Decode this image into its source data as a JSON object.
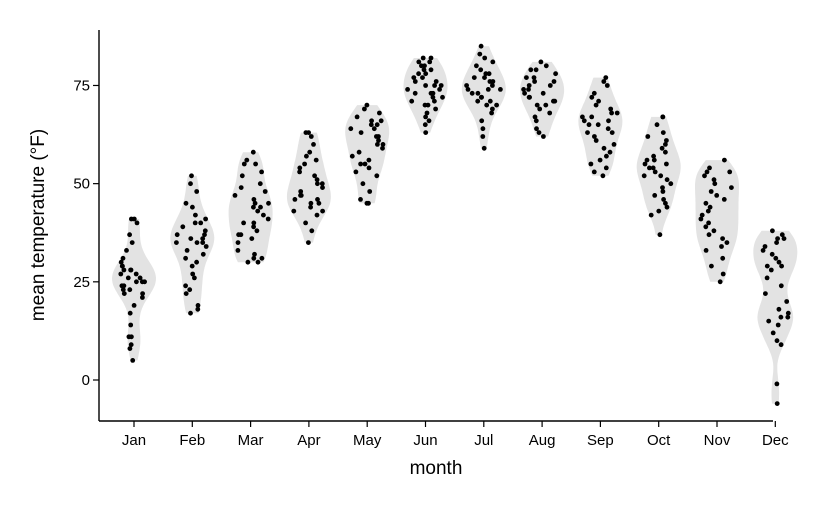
{
  "chart_data": {
    "type": "violin",
    "xlabel": "month",
    "ylabel": "mean temperature (°F)",
    "categories": [
      "Jan",
      "Feb",
      "Mar",
      "Apr",
      "May",
      "Jun",
      "Jul",
      "Aug",
      "Sep",
      "Oct",
      "Nov",
      "Dec"
    ],
    "y_ticks": [
      0,
      25,
      50,
      75
    ],
    "ylim": [
      -10,
      89
    ],
    "grid": false,
    "legend": "none",
    "colors": {
      "violin_fill": "#e3e3e3",
      "point": "#000000"
    },
    "series": [
      {
        "category": "Jan",
        "values": [
          5,
          8,
          9,
          11,
          11,
          14,
          17,
          19,
          21,
          22,
          22,
          23,
          23,
          24,
          24,
          25,
          25,
          25,
          26,
          26,
          27,
          27,
          28,
          28,
          28,
          29,
          29,
          30,
          31,
          33,
          35,
          37,
          40,
          41,
          41
        ]
      },
      {
        "category": "Feb",
        "values": [
          17,
          18,
          19,
          22,
          23,
          24,
          26,
          27,
          29,
          30,
          31,
          32,
          33,
          34,
          35,
          35,
          35,
          36,
          36,
          37,
          37,
          38,
          39,
          40,
          40,
          41,
          42,
          44,
          45,
          48,
          50,
          52
        ]
      },
      {
        "category": "Mar",
        "values": [
          30,
          30,
          31,
          31,
          32,
          33,
          35,
          36,
          37,
          37,
          38,
          39,
          40,
          40,
          41,
          42,
          43,
          44,
          44,
          45,
          45,
          46,
          47,
          48,
          49,
          50,
          52,
          53,
          55,
          55,
          56,
          58
        ]
      },
      {
        "category": "Apr",
        "values": [
          35,
          38,
          40,
          42,
          43,
          43,
          44,
          45,
          45,
          46,
          46,
          47,
          47,
          48,
          49,
          50,
          50,
          51,
          52,
          53,
          54,
          55,
          56,
          57,
          58,
          60,
          62,
          63,
          63
        ]
      },
      {
        "category": "May",
        "values": [
          45,
          45,
          46,
          48,
          50,
          52,
          53,
          54,
          55,
          55,
          56,
          57,
          58,
          59,
          60,
          60,
          61,
          62,
          62,
          63,
          64,
          64,
          65,
          65,
          66,
          66,
          67,
          68,
          69,
          70
        ]
      },
      {
        "category": "Jun",
        "values": [
          63,
          65,
          66,
          67,
          68,
          69,
          70,
          70,
          71,
          71,
          72,
          72,
          73,
          73,
          73,
          74,
          74,
          75,
          75,
          75,
          76,
          76,
          77,
          77,
          78,
          78,
          79,
          79,
          80,
          80,
          81,
          81,
          82,
          82
        ]
      },
      {
        "category": "Jul",
        "values": [
          59,
          62,
          64,
          66,
          68,
          69,
          70,
          70,
          71,
          71,
          72,
          72,
          73,
          73,
          74,
          74,
          74,
          75,
          75,
          76,
          76,
          77,
          77,
          78,
          78,
          79,
          80,
          81,
          82,
          83,
          85
        ]
      },
      {
        "category": "Aug",
        "values": [
          62,
          63,
          64,
          66,
          67,
          68,
          69,
          70,
          70,
          71,
          71,
          72,
          72,
          73,
          73,
          74,
          74,
          75,
          75,
          76,
          76,
          77,
          77,
          78,
          79,
          79,
          80,
          81
        ]
      },
      {
        "category": "Sep",
        "values": [
          52,
          53,
          54,
          55,
          56,
          57,
          58,
          59,
          60,
          61,
          62,
          63,
          63,
          64,
          65,
          65,
          66,
          66,
          67,
          67,
          68,
          68,
          69,
          70,
          71,
          72,
          73,
          75,
          76,
          77
        ]
      },
      {
        "category": "Oct",
        "values": [
          37,
          42,
          43,
          44,
          45,
          46,
          47,
          48,
          49,
          50,
          51,
          52,
          52,
          53,
          54,
          54,
          55,
          55,
          56,
          56,
          57,
          58,
          59,
          60,
          61,
          62,
          63,
          65,
          67,
          67
        ]
      },
      {
        "category": "Nov",
        "values": [
          25,
          27,
          29,
          31,
          33,
          34,
          35,
          36,
          37,
          38,
          39,
          40,
          41,
          42,
          43,
          44,
          45,
          46,
          47,
          48,
          49,
          50,
          51,
          52,
          53,
          53,
          54,
          56
        ]
      },
      {
        "category": "Dec",
        "values": [
          -6,
          -1,
          9,
          10,
          12,
          14,
          15,
          16,
          16,
          17,
          18,
          20,
          22,
          24,
          26,
          28,
          29,
          29,
          30,
          31,
          32,
          33,
          34,
          35,
          36,
          36,
          37,
          38
        ]
      }
    ]
  }
}
